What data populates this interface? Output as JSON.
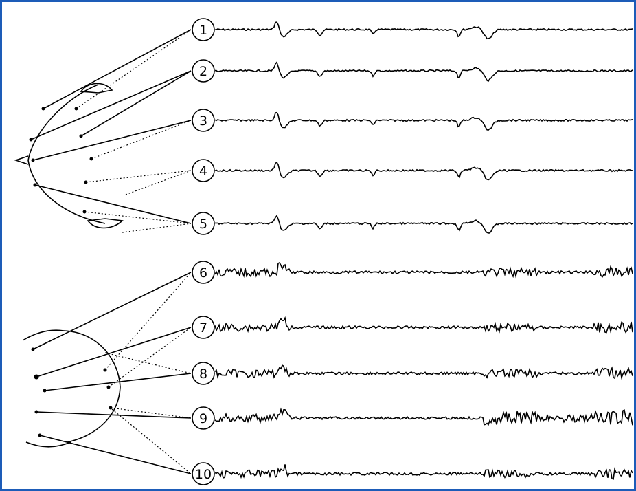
{
  "nodes": [
    {
      "label": "1"
    },
    {
      "label": "2"
    },
    {
      "label": "3"
    },
    {
      "label": "4"
    },
    {
      "label": "5"
    },
    {
      "label": "6"
    },
    {
      "label": "7"
    },
    {
      "label": "8"
    },
    {
      "label": "9"
    },
    {
      "label": "10"
    }
  ]
}
